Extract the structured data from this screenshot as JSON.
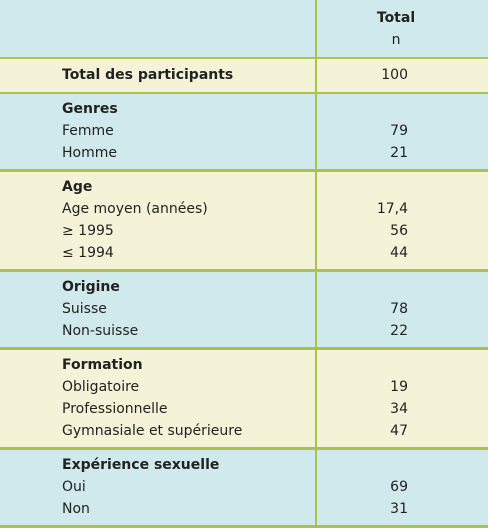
{
  "header": {
    "total": "Total",
    "n": "n"
  },
  "table": {
    "total_row": [
      "Total des participants",
      "100"
    ],
    "sections": [
      {
        "title": "Genres",
        "rows": [
          [
            "Femme",
            "79"
          ],
          [
            "Homme",
            "21"
          ]
        ]
      },
      {
        "title": "Age",
        "rows": [
          [
            "Age moyen (années)",
            "17,4"
          ],
          [
            "≥ 1995",
            "56"
          ],
          [
            "≤ 1994",
            "44"
          ]
        ]
      },
      {
        "title": "Origine",
        "rows": [
          [
            "Suisse",
            "78"
          ],
          [
            "Non-suisse",
            "22"
          ]
        ]
      },
      {
        "title": "Formation",
        "rows": [
          [
            "Obligatoire",
            "19"
          ],
          [
            "Professionnelle",
            "34"
          ],
          [
            "Gymnasiale et supérieure",
            "47"
          ]
        ]
      },
      {
        "title": "Expérience sexuelle",
        "rows": [
          [
            "Oui",
            "69"
          ],
          [
            "Non",
            "31"
          ]
        ]
      }
    ]
  }
}
